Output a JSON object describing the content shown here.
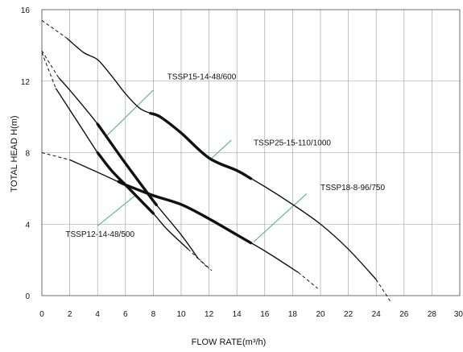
{
  "chart_data": {
    "type": "line",
    "title": "",
    "xlabel": "FLOW RATE(m³/h)",
    "ylabel": "TOTAL HEAD H(m)",
    "xlim": [
      0,
      30
    ],
    "ylim": [
      0,
      16
    ],
    "xticks": [
      "0",
      "2",
      "4",
      "6",
      "8",
      "10",
      "12",
      "14",
      "16",
      "18",
      "20",
      "22",
      "24",
      "26",
      "28",
      "30"
    ],
    "yticks": [
      "0",
      "4",
      "8",
      "12",
      "16"
    ],
    "grid": true,
    "colors": {
      "curve": "#111111",
      "efficiency_line": "#5fb89a",
      "grid": "#999999"
    },
    "series": [
      {
        "name": "TSSP15-14-48/600",
        "dashed_start": [
          [
            0,
            15.4
          ],
          [
            1.8,
            14.4
          ]
        ],
        "x": [
          1.8,
          3,
          4,
          5,
          6,
          7,
          7.8,
          8.5,
          10,
          12,
          14,
          16,
          18,
          20,
          22,
          24
        ],
        "y": [
          14.4,
          13.6,
          13.2,
          12.3,
          11.3,
          10.5,
          10.2,
          10.0,
          9.1,
          7.7,
          7.0,
          6.1,
          5.1,
          4.0,
          2.6,
          0.9
        ],
        "bold_range": [
          7.8,
          15.0
        ],
        "dashed_end": [
          [
            24,
            0.9
          ],
          [
            25,
            -0.3
          ]
        ]
      },
      {
        "name": "TSSP25-15-110/1000",
        "dashed_start": [
          [
            0,
            13.7
          ],
          [
            1.2,
            12.2
          ]
        ],
        "x": [
          1.2,
          2,
          4,
          6,
          8,
          10,
          11.2
        ],
        "y": [
          12.2,
          11.5,
          9.6,
          7.4,
          5.3,
          3.4,
          2.1
        ],
        "bold_range": [
          4.0,
          8.2
        ],
        "dashed_end": [
          [
            11.2,
            2.1
          ],
          [
            12.2,
            1.4
          ]
        ]
      },
      {
        "name": "TSSP18-8-96/750",
        "dashed_start": [
          [
            0,
            8.0
          ],
          [
            2,
            7.6
          ]
        ],
        "x": [
          2,
          4,
          6,
          8,
          10,
          12,
          14,
          16,
          18.4
        ],
        "y": [
          7.6,
          6.9,
          6.2,
          5.6,
          5.1,
          4.3,
          3.4,
          2.5,
          1.3
        ],
        "bold_range": [
          5.5,
          15.0
        ],
        "dashed_end": [
          [
            18.4,
            1.3
          ],
          [
            19.8,
            0.4
          ]
        ]
      },
      {
        "name": "TSSP12-14-48/500",
        "dashed_start": [
          [
            0,
            13.6
          ],
          [
            1,
            11.6
          ]
        ],
        "x": [
          1,
          2,
          3,
          4,
          5,
          6,
          7,
          8,
          9,
          10.5
        ],
        "y": [
          11.6,
          10.4,
          9.2,
          8.0,
          7.0,
          6.2,
          5.4,
          4.6,
          3.7,
          2.6
        ],
        "bold_range": [
          4.0,
          8.0
        ],
        "dashed_end": [
          [
            10.5,
            2.6
          ],
          [
            12.0,
            1.5
          ]
        ]
      }
    ],
    "efficiency_lines": [
      {
        "from": [
          4.6,
          8.9
        ],
        "to": [
          8.0,
          11.5
        ]
      },
      {
        "from": [
          12.2,
          7.7
        ],
        "to": [
          13.6,
          8.7
        ]
      },
      {
        "from": [
          15.2,
          3.0
        ],
        "to": [
          19.0,
          5.7
        ]
      },
      {
        "from": [
          4.0,
          3.9
        ],
        "to": [
          6.7,
          5.6
        ]
      }
    ],
    "annotations": [
      {
        "text": "TSSP15-14-48/600",
        "at": [
          9.0,
          12.1
        ]
      },
      {
        "text": "TSSP25-15-110/1000",
        "at": [
          15.2,
          8.4
        ]
      },
      {
        "text": "TSSP18-8-96/750",
        "at": [
          20.0,
          5.9
        ]
      },
      {
        "text": "TSSP12-14-48/500",
        "at": [
          1.7,
          3.3
        ]
      }
    ]
  }
}
